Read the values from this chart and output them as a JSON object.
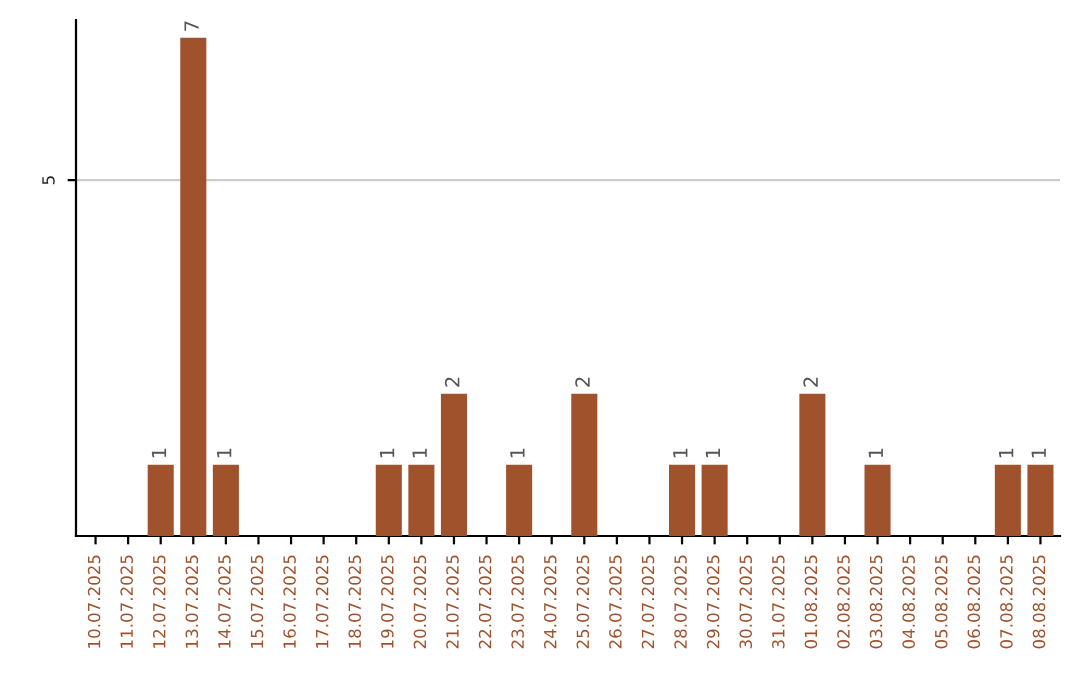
{
  "chart_data": {
    "type": "bar",
    "categories": [
      "10.07.2025",
      "11.07.2025",
      "12.07.2025",
      "13.07.2025",
      "14.07.2025",
      "15.07.2025",
      "16.07.2025",
      "17.07.2025",
      "18.07.2025",
      "19.07.2025",
      "20.07.2025",
      "21.07.2025",
      "22.07.2025",
      "23.07.2025",
      "24.07.2025",
      "25.07.2025",
      "26.07.2025",
      "27.07.2025",
      "28.07.2025",
      "29.07.2025",
      "30.07.2025",
      "31.07.2025",
      "01.08.2025",
      "02.08.2025",
      "03.08.2025",
      "04.08.2025",
      "05.08.2025",
      "06.08.2025",
      "07.08.2025",
      "08.08.2025"
    ],
    "values": [
      0,
      0,
      1,
      7,
      1,
      0,
      0,
      0,
      0,
      1,
      1,
      2,
      0,
      1,
      0,
      2,
      0,
      0,
      1,
      1,
      0,
      0,
      2,
      0,
      1,
      0,
      0,
      0,
      1,
      1
    ],
    "value_labels": [
      null,
      null,
      "1",
      "7",
      "1",
      null,
      null,
      null,
      null,
      "1",
      "1",
      "2",
      null,
      "1",
      null,
      "2",
      null,
      null,
      "1",
      "1",
      null,
      null,
      "2",
      null,
      "1",
      null,
      null,
      null,
      "1",
      "1"
    ],
    "color": "#a0522d",
    "ylim": [
      0,
      7.25
    ],
    "yticks": [
      5
    ],
    "grid": "y"
  }
}
